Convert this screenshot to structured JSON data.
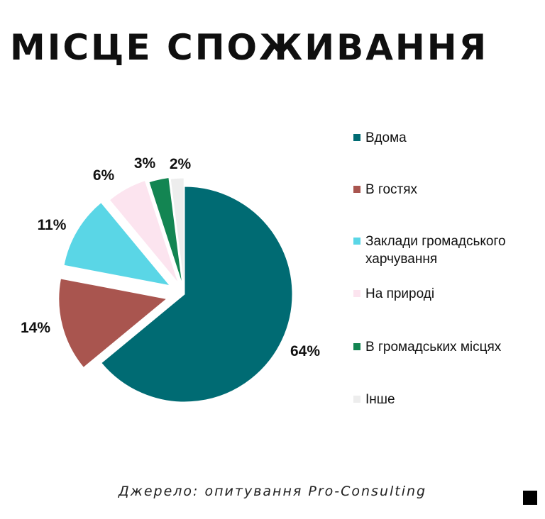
{
  "title": "МІСЦЕ СПОЖИВАННЯ",
  "source": "Джерело: опитування Pro-Consulting",
  "chart_data": {
    "type": "pie",
    "title": "",
    "legend_position": "right",
    "slices": [
      {
        "label": "Вдома",
        "value": 64,
        "value_label": "64%",
        "color": "#006b73"
      },
      {
        "label": "В гостях",
        "value": 14,
        "value_label": "14%",
        "color": "#a9554f"
      },
      {
        "label": "Заклади громадського харчування",
        "value": 11,
        "value_label": "11%",
        "color": "#5ad6e6"
      },
      {
        "label": "На природі",
        "value": 6,
        "value_label": "6%",
        "color": "#fce4ef"
      },
      {
        "label": "В громадських місцях",
        "value": 3,
        "value_label": "3%",
        "color": "#138552"
      },
      {
        "label": "Інше",
        "value": 2,
        "value_label": "2%",
        "color": "#ededed"
      }
    ]
  }
}
